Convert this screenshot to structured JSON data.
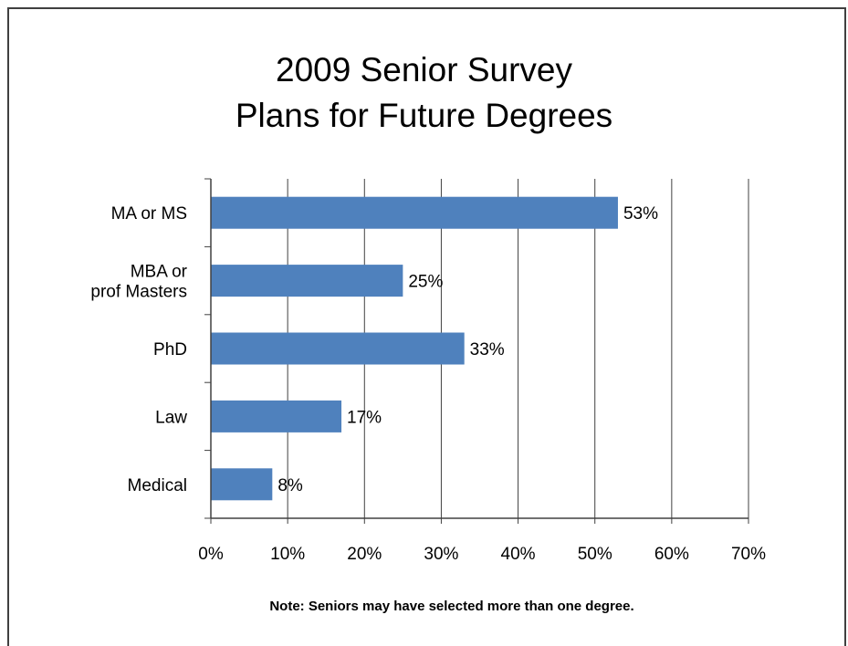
{
  "title_line1": "2009 Senior Survey",
  "title_line2": "Plans for Future Degrees",
  "note": "Note: Seniors may have selected more than one degree.",
  "chart_data": {
    "type": "bar",
    "orientation": "horizontal",
    "title": "2009 Senior Survey Plans for Future Degrees",
    "categories": [
      [
        "MA or MS"
      ],
      [
        "MBA or",
        "prof Masters"
      ],
      [
        "PhD"
      ],
      [
        "Law"
      ],
      [
        "Medical"
      ]
    ],
    "values": [
      53,
      25,
      33,
      17,
      8
    ],
    "data_labels": [
      "53%",
      "25%",
      "33%",
      "17%",
      "8%"
    ],
    "xlim": [
      0,
      70
    ],
    "x_ticks": [
      0,
      10,
      20,
      30,
      40,
      50,
      60,
      70
    ],
    "x_tick_labels": [
      "0%",
      "10%",
      "20%",
      "30%",
      "40%",
      "50%",
      "60%",
      "70%"
    ],
    "grid": "vertical major gridlines",
    "legend": "none",
    "bar_color": "#4F81BD",
    "gridline_color": "#404040"
  }
}
